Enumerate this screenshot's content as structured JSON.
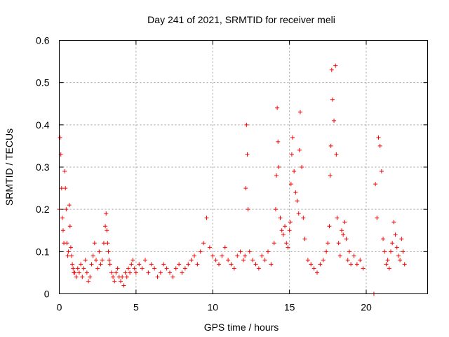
{
  "chart_data": {
    "type": "scatter",
    "title": "Day 241 of 2021, SRMTID for receiver meli",
    "xlabel": "GPS time / hours",
    "ylabel": "SRMTID / TECUs",
    "xlim": [
      0,
      24
    ],
    "ylim": [
      0,
      0.6
    ],
    "xticks": [
      0,
      5,
      10,
      15,
      20
    ],
    "xtick_labels": [
      "0",
      "5",
      "10",
      "15",
      "20"
    ],
    "yticks": [
      0,
      0.1,
      0.2,
      0.3,
      0.4,
      0.5,
      0.6
    ],
    "ytick_labels": [
      "0",
      "0.1",
      "0.2",
      "0.3",
      "0.4",
      "0.5",
      "0.6"
    ],
    "grid": true,
    "marker": "plus",
    "color": "#ff0000",
    "series": [
      {
        "name": "SRMTID",
        "x": [
          0.0,
          0.05,
          0.1,
          0.15,
          0.2,
          0.25,
          0.3,
          0.35,
          0.4,
          0.45,
          0.5,
          0.55,
          0.6,
          0.65,
          0.7,
          0.75,
          0.8,
          0.85,
          0.9,
          0.95,
          1.0,
          1.1,
          1.2,
          1.3,
          1.4,
          1.5,
          1.6,
          1.7,
          1.8,
          1.9,
          2.0,
          2.1,
          2.2,
          2.3,
          2.4,
          2.5,
          2.6,
          2.7,
          2.8,
          2.9,
          3.0,
          3.05,
          3.1,
          3.15,
          3.2,
          3.25,
          3.3,
          3.4,
          3.5,
          3.6,
          3.7,
          3.8,
          3.9,
          4.0,
          4.1,
          4.2,
          4.3,
          4.4,
          4.5,
          4.6,
          4.7,
          4.8,
          4.9,
          5.0,
          5.2,
          5.4,
          5.6,
          5.8,
          6.0,
          6.2,
          6.4,
          6.6,
          6.8,
          7.0,
          7.2,
          7.4,
          7.6,
          7.8,
          8.0,
          8.2,
          8.4,
          8.6,
          8.8,
          9.0,
          9.2,
          9.4,
          9.6,
          9.8,
          10.0,
          10.2,
          10.4,
          10.6,
          10.8,
          11.0,
          11.2,
          11.4,
          11.6,
          11.8,
          12.0,
          12.1,
          12.15,
          12.2,
          12.25,
          12.3,
          12.4,
          12.6,
          12.8,
          13.0,
          13.2,
          13.4,
          13.6,
          13.8,
          14.0,
          14.1,
          14.15,
          14.2,
          14.25,
          14.3,
          14.4,
          14.5,
          14.6,
          14.7,
          14.8,
          14.9,
          15.0,
          15.05,
          15.1,
          15.15,
          15.2,
          15.3,
          15.4,
          15.5,
          15.6,
          15.65,
          15.7,
          15.8,
          15.9,
          16.0,
          16.2,
          16.4,
          16.6,
          16.8,
          17.0,
          17.2,
          17.4,
          17.5,
          17.6,
          17.65,
          17.7,
          17.75,
          17.8,
          17.9,
          18.0,
          18.05,
          18.1,
          18.2,
          18.3,
          18.4,
          18.5,
          18.6,
          18.7,
          18.8,
          18.9,
          19.0,
          19.2,
          19.4,
          19.6,
          19.8,
          20.5,
          20.6,
          20.7,
          20.8,
          20.9,
          21.0,
          21.1,
          21.2,
          21.3,
          21.4,
          21.5,
          21.6,
          21.7,
          21.8,
          21.9,
          22.0,
          22.1,
          22.2,
          22.3,
          22.4,
          22.5
        ],
        "y": [
          0.2,
          0.37,
          0.33,
          0.25,
          0.18,
          0.15,
          0.12,
          0.29,
          0.25,
          0.2,
          0.12,
          0.09,
          0.1,
          0.21,
          0.16,
          0.11,
          0.09,
          0.07,
          0.06,
          0.05,
          0.05,
          0.04,
          0.06,
          0.05,
          0.07,
          0.04,
          0.06,
          0.08,
          0.05,
          0.03,
          0.04,
          0.07,
          0.09,
          0.12,
          0.08,
          0.06,
          0.1,
          0.07,
          0.08,
          0.12,
          0.16,
          0.19,
          0.15,
          0.12,
          0.1,
          0.08,
          0.07,
          0.05,
          0.04,
          0.03,
          0.05,
          0.06,
          0.04,
          0.03,
          0.04,
          0.02,
          0.05,
          0.04,
          0.06,
          0.05,
          0.07,
          0.08,
          0.06,
          0.05,
          0.07,
          0.06,
          0.08,
          0.05,
          0.07,
          0.06,
          0.04,
          0.05,
          0.07,
          0.06,
          0.05,
          0.04,
          0.06,
          0.07,
          0.05,
          0.06,
          0.07,
          0.08,
          0.09,
          0.07,
          0.1,
          0.12,
          0.18,
          0.11,
          0.09,
          0.08,
          0.07,
          0.09,
          0.11,
          0.08,
          0.07,
          0.06,
          0.09,
          0.1,
          0.08,
          0.09,
          0.25,
          0.4,
          0.33,
          0.2,
          0.1,
          0.08,
          0.07,
          0.06,
          0.09,
          0.08,
          0.1,
          0.07,
          0.12,
          0.2,
          0.28,
          0.44,
          0.36,
          0.3,
          0.18,
          0.15,
          0.14,
          0.16,
          0.12,
          0.11,
          0.15,
          0.17,
          0.26,
          0.33,
          0.37,
          0.29,
          0.24,
          0.22,
          0.19,
          0.34,
          0.43,
          0.3,
          0.18,
          0.13,
          0.08,
          0.07,
          0.06,
          0.05,
          0.07,
          0.08,
          0.1,
          0.12,
          0.16,
          0.28,
          0.35,
          0.53,
          0.46,
          0.41,
          0.54,
          0.33,
          0.18,
          0.12,
          0.09,
          0.15,
          0.14,
          0.17,
          0.13,
          0.08,
          0.1,
          0.07,
          0.09,
          0.07,
          0.08,
          0.06,
          0.0,
          0.26,
          0.18,
          0.37,
          0.35,
          0.29,
          0.13,
          0.1,
          0.07,
          0.08,
          0.06,
          0.1,
          0.12,
          0.17,
          0.14,
          0.11,
          0.09,
          0.08,
          0.13,
          0.1,
          0.07
        ]
      }
    ]
  }
}
